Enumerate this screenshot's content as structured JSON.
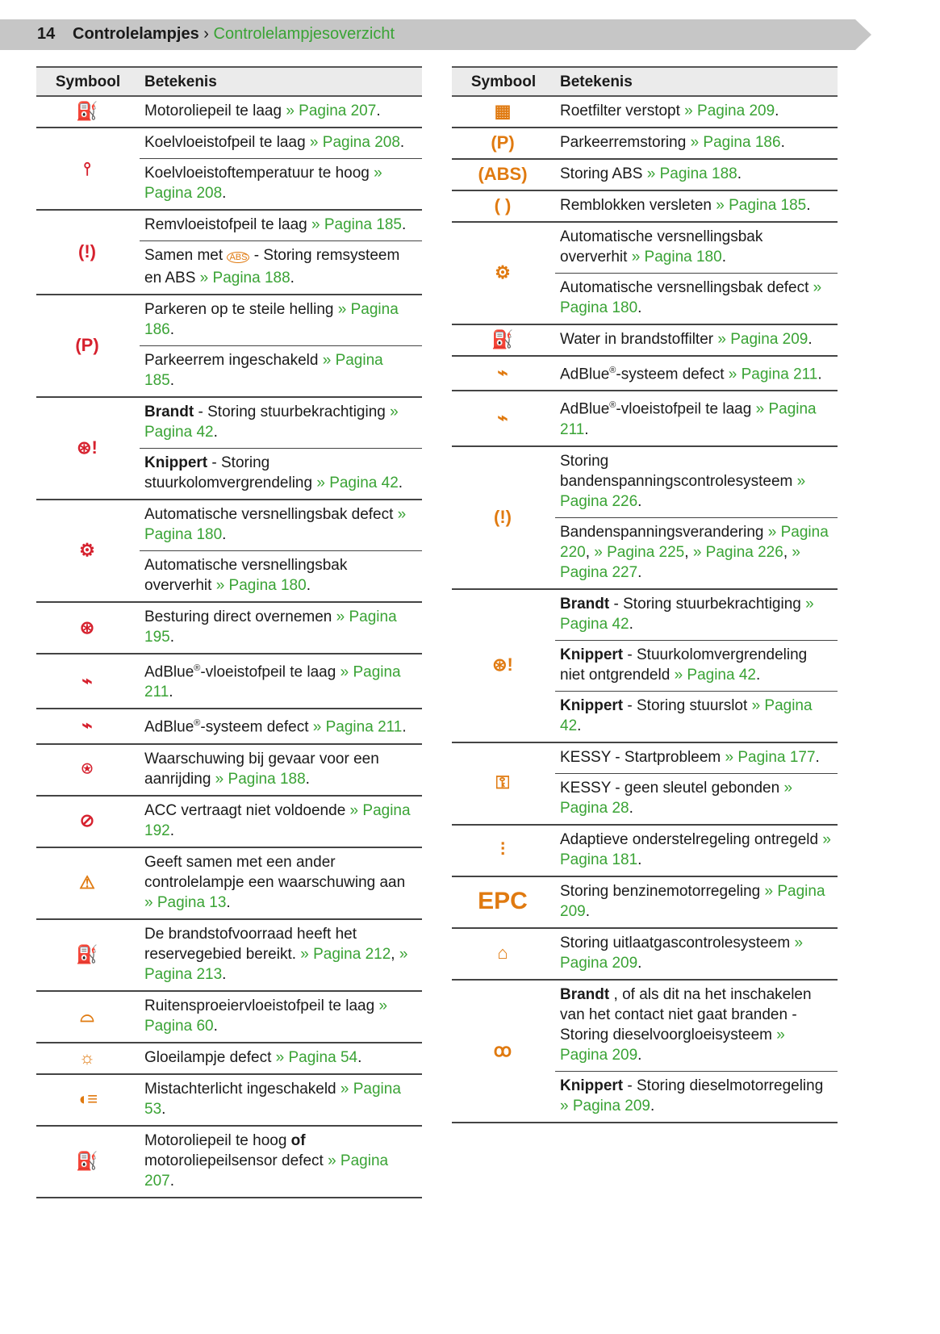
{
  "header": {
    "page_number": "14",
    "section": "Controlelampjes",
    "separator": "›",
    "subsection": "Controlelampjesoverzicht"
  },
  "colors": {
    "red": "#d6212e",
    "orange": "#e07a10",
    "link": "#3aa335"
  },
  "columns": {
    "symbol": "Symbool",
    "meaning": "Betekenis"
  },
  "left": [
    {
      "icon": "oil-pressure-icon",
      "color": "red",
      "entries": [
        [
          [
            "",
            "Motoroliepeil te laag "
          ],
          [
            "l",
            "» Pagina 207"
          ],
          [
            "",
            "."
          ]
        ]
      ]
    },
    {
      "icon": "coolant-icon",
      "color": "red",
      "entries": [
        [
          [
            "",
            "Koelvloeistofpeil te laag "
          ],
          [
            "l",
            "» Pagina 208"
          ],
          [
            "",
            "."
          ]
        ],
        [
          [
            "",
            "Koelvloeistoftemperatuur te hoog "
          ],
          [
            "l",
            "» Pagina 208"
          ],
          [
            "",
            "."
          ]
        ]
      ]
    },
    {
      "icon": "brake-warning-icon",
      "color": "red",
      "entries": [
        [
          [
            "",
            "Remvloeistofpeil te laag "
          ],
          [
            "l",
            "» Pagina 185"
          ],
          [
            "",
            "."
          ]
        ],
        [
          [
            "",
            "Samen met "
          ],
          [
            "i",
            "ABS"
          ],
          [
            "",
            ""
          ],
          [
            "",
            "- Storing remsysteem en ABS "
          ],
          [
            "l",
            "» Pagina 188"
          ],
          [
            "",
            "."
          ]
        ]
      ]
    },
    {
      "icon": "parking-brake-icon",
      "color": "red",
      "entries": [
        [
          [
            "",
            "Parkeren op te steile helling "
          ],
          [
            "l",
            "» Pagina 186"
          ],
          [
            "",
            "."
          ]
        ],
        [
          [
            "",
            "Parkeerrem ingeschakeld "
          ],
          [
            "l",
            "» Pagina 185"
          ],
          [
            "",
            "."
          ]
        ]
      ]
    },
    {
      "icon": "steering-warning-icon",
      "color": "red",
      "entries": [
        [
          [
            "b",
            "Brandt"
          ],
          [
            "",
            "- Storing stuurbekrachtiging "
          ],
          [
            "l",
            "» Pagina 42"
          ],
          [
            "",
            "."
          ]
        ],
        [
          [
            "b",
            "Knippert"
          ],
          [
            "",
            "- Storing stuurkolomvergrendeling "
          ],
          [
            "l",
            "» Pagina 42"
          ],
          [
            "",
            "."
          ]
        ]
      ]
    },
    {
      "icon": "gearbox-warning-icon",
      "color": "red",
      "entries": [
        [
          [
            "",
            "Automatische versnellingsbak defect "
          ],
          [
            "l",
            "» Pagina 180"
          ],
          [
            "",
            "."
          ]
        ],
        [
          [
            "",
            "Automatische versnellingsbak oververhit "
          ],
          [
            "l",
            "» Pagina 180"
          ],
          [
            "",
            "."
          ]
        ]
      ]
    },
    {
      "icon": "hands-on-steering-icon",
      "color": "red",
      "entries": [
        [
          [
            "",
            "Besturing direct overnemen "
          ],
          [
            "l",
            "» Pagina 195"
          ],
          [
            "",
            "."
          ]
        ]
      ]
    },
    {
      "icon": "adblue-level-icon",
      "color": "red",
      "entries": [
        [
          [
            "",
            "AdBlue"
          ],
          [
            "s",
            "®"
          ],
          [
            "",
            "-vloeistofpeil te laag "
          ],
          [
            "l",
            "» Pagina 211"
          ],
          [
            "",
            "."
          ]
        ]
      ]
    },
    {
      "icon": "adblue-system-icon",
      "color": "red",
      "entries": [
        [
          [
            "",
            "AdBlue"
          ],
          [
            "s",
            "®"
          ],
          [
            "",
            "-systeem defect "
          ],
          [
            "l",
            "» Pagina 211"
          ],
          [
            "",
            "."
          ]
        ]
      ]
    },
    {
      "icon": "collision-warning-icon",
      "color": "red",
      "entries": [
        [
          [
            "",
            "Waarschuwing bij gevaar voor een aanrijding "
          ],
          [
            "l",
            "» Pagina 188"
          ],
          [
            "",
            "."
          ]
        ]
      ]
    },
    {
      "icon": "acc-icon",
      "color": "red",
      "entries": [
        [
          [
            "",
            "ACC vertraagt niet voldoende "
          ],
          [
            "l",
            "» Pagina 192"
          ],
          [
            "",
            "."
          ]
        ]
      ]
    },
    {
      "icon": "warning-triangle-icon",
      "color": "orange",
      "entries": [
        [
          [
            "",
            "Geeft samen met een ander controlelampje een waarschuwing aan "
          ],
          [
            "l",
            "» Pagina 13"
          ],
          [
            "",
            "."
          ]
        ]
      ]
    },
    {
      "icon": "fuel-icon",
      "color": "orange",
      "entries": [
        [
          [
            "",
            "De brandstofvoorraad heeft het reservegebied bereikt. "
          ],
          [
            "l",
            "» Pagina 212"
          ],
          [
            "",
            ", "
          ],
          [
            "l",
            "» Pagina 213"
          ],
          [
            "",
            "."
          ]
        ]
      ]
    },
    {
      "icon": "washer-fluid-icon",
      "color": "orange",
      "entries": [
        [
          [
            "",
            "Ruitensproeiervloeistofpeil te laag "
          ],
          [
            "l",
            "» Pagina 60"
          ],
          [
            "",
            "."
          ]
        ]
      ]
    },
    {
      "icon": "bulb-failure-icon",
      "color": "orange",
      "entries": [
        [
          [
            "",
            "Gloeilampje defect "
          ],
          [
            "l",
            "» Pagina 54"
          ],
          [
            "",
            "."
          ]
        ]
      ]
    },
    {
      "icon": "rear-fog-icon",
      "color": "orange",
      "entries": [
        [
          [
            "",
            "Mistachterlicht ingeschakeld "
          ],
          [
            "l",
            "» Pagina 53"
          ],
          [
            "",
            "."
          ]
        ]
      ]
    },
    {
      "icon": "oil-level-icon",
      "color": "orange",
      "entries": [
        [
          [
            "",
            "Motoroliepeil te hoog "
          ],
          [
            "b",
            "of"
          ],
          [
            "",
            "motoroliepeilsensor defect "
          ],
          [
            "l",
            "» Pagina 207"
          ],
          [
            "",
            "."
          ]
        ]
      ]
    }
  ],
  "right": [
    {
      "icon": "particle-filter-icon",
      "color": "orange",
      "entries": [
        [
          [
            "",
            "Roetfilter verstopt "
          ],
          [
            "l",
            "» Pagina 209"
          ],
          [
            "",
            "."
          ]
        ]
      ]
    },
    {
      "icon": "parking-brake-icon",
      "color": "orange",
      "entries": [
        [
          [
            "",
            "Parkeerremstoring "
          ],
          [
            "l",
            "» Pagina 186"
          ],
          [
            "",
            "."
          ]
        ]
      ]
    },
    {
      "icon": "abs-icon",
      "color": "orange",
      "entries": [
        [
          [
            "",
            "Storing ABS "
          ],
          [
            "l",
            "» Pagina 188"
          ],
          [
            "",
            "."
          ]
        ]
      ]
    },
    {
      "icon": "brake-pads-icon",
      "color": "orange",
      "entries": [
        [
          [
            "",
            "Remblokken versleten "
          ],
          [
            "l",
            "» Pagina 185"
          ],
          [
            "",
            "."
          ]
        ]
      ]
    },
    {
      "icon": "gearbox-warning-icon",
      "color": "orange",
      "entries": [
        [
          [
            "",
            "Automatische versnellingsbak oververhit "
          ],
          [
            "l",
            "» Pagina 180"
          ],
          [
            "",
            "."
          ]
        ],
        [
          [
            "",
            "Automatische versnellingsbak defect "
          ],
          [
            "l",
            "» Pagina 180"
          ],
          [
            "",
            "."
          ]
        ]
      ]
    },
    {
      "icon": "water-in-fuel-icon",
      "color": "orange",
      "entries": [
        [
          [
            "",
            "Water in brandstoffilter "
          ],
          [
            "l",
            "» Pagina 209"
          ],
          [
            "",
            "."
          ]
        ]
      ]
    },
    {
      "icon": "adblue-system-icon",
      "color": "orange",
      "entries": [
        [
          [
            "",
            "AdBlue"
          ],
          [
            "s",
            "®"
          ],
          [
            "",
            "-systeem defect "
          ],
          [
            "l",
            "» Pagina 211"
          ],
          [
            "",
            "."
          ]
        ]
      ]
    },
    {
      "icon": "adblue-level-icon",
      "color": "orange",
      "entries": [
        [
          [
            "",
            "AdBlue"
          ],
          [
            "s",
            "®"
          ],
          [
            "",
            "-vloeistofpeil te laag "
          ],
          [
            "l",
            "» Pagina 211"
          ],
          [
            "",
            "."
          ]
        ]
      ]
    },
    {
      "icon": "tire-pressure-icon",
      "color": "orange",
      "entries": [
        [
          [
            "",
            "Storing bandenspanningscontrolesysteem "
          ],
          [
            "l",
            "» Pagina 226"
          ],
          [
            "",
            "."
          ]
        ],
        [
          [
            "",
            "Bandenspanningsverandering "
          ],
          [
            "l",
            "» Pagina 220"
          ],
          [
            "",
            ", "
          ],
          [
            "l",
            "» Pagina 225"
          ],
          [
            "",
            ", "
          ],
          [
            "l",
            "» Pagina 226"
          ],
          [
            "",
            ", "
          ],
          [
            "l",
            "» Pagina 227"
          ],
          [
            "",
            "."
          ]
        ]
      ]
    },
    {
      "icon": "steering-warning-icon",
      "color": "orange",
      "entries": [
        [
          [
            "b",
            "Brandt"
          ],
          [
            "",
            "- Storing stuurbekrachtiging "
          ],
          [
            "l",
            "» Pagina 42"
          ],
          [
            "",
            "."
          ]
        ],
        [
          [
            "b",
            "Knippert"
          ],
          [
            "",
            "- Stuurkolomvergrendeling niet ontgrendeld "
          ],
          [
            "l",
            "» Pagina 42"
          ],
          [
            "",
            "."
          ]
        ],
        [
          [
            "b",
            "Knippert"
          ],
          [
            "",
            "- Storing stuurslot "
          ],
          [
            "l",
            "» Pagina 42"
          ],
          [
            "",
            "."
          ]
        ]
      ]
    },
    {
      "icon": "kessy-key-icon",
      "color": "orange",
      "entries": [
        [
          [
            "",
            "KESSY - Startprobleem "
          ],
          [
            "l",
            "» Pagina 177"
          ],
          [
            "",
            "."
          ]
        ],
        [
          [
            "",
            "KESSY - geen sleutel gebonden "
          ],
          [
            "l",
            "» Pagina 28"
          ],
          [
            "",
            "."
          ]
        ]
      ]
    },
    {
      "icon": "suspension-icon",
      "color": "orange",
      "entries": [
        [
          [
            "",
            "Adaptieve onderstelregeling ontregeld "
          ],
          [
            "l",
            "» Pagina 181"
          ],
          [
            "",
            "."
          ]
        ]
      ]
    },
    {
      "icon": "epc-icon",
      "color": "orange",
      "entries": [
        [
          [
            "",
            "Storing benzinemotorregeling "
          ],
          [
            "l",
            "» Pagina 209"
          ],
          [
            "",
            "."
          ]
        ]
      ]
    },
    {
      "icon": "engine-check-icon",
      "color": "orange",
      "entries": [
        [
          [
            "",
            "Storing uitlaatgascontrolesysteem "
          ],
          [
            "l",
            "» Pagina 209"
          ],
          [
            "",
            "."
          ]
        ]
      ]
    },
    {
      "icon": "glow-plug-icon",
      "color": "orange",
      "entries": [
        [
          [
            "b",
            "Brandt"
          ],
          [
            "",
            ", of als dit na het inschakelen van het contact niet gaat branden - Storing dieselvoorgloeisysteem "
          ],
          [
            "l",
            "» Pagina 209"
          ],
          [
            "",
            "."
          ]
        ],
        [
          [
            "b",
            "Knippert"
          ],
          [
            "",
            "- Storing dieselmotorregeling "
          ],
          [
            "l",
            "» Pagina 209"
          ],
          [
            "",
            "."
          ]
        ]
      ]
    }
  ]
}
